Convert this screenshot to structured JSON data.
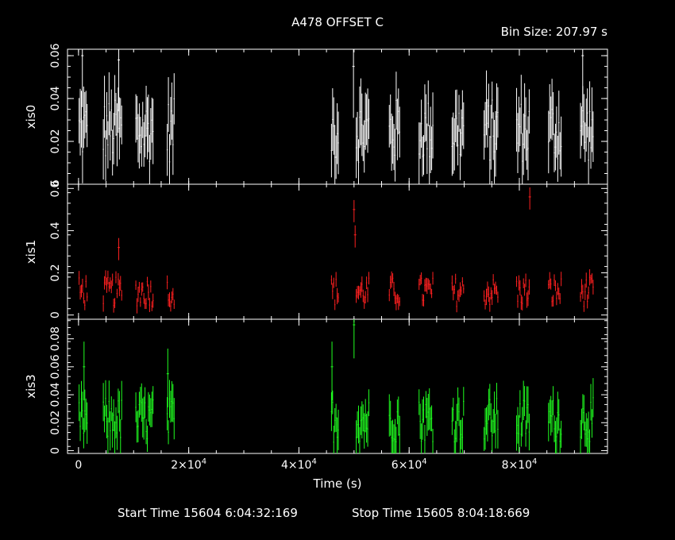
{
  "title": "A478 OFFSET C",
  "bin_size": "Bin Size: 207.97 s",
  "footer": {
    "start": "Start Time 15604  6:04:32:169",
    "stop": "Stop Time 15605  8:04:18:669"
  },
  "colors": {
    "xis0": "#ffffff",
    "xis1": "#ff2020",
    "xis3": "#20ff20",
    "axes": "#ffffff",
    "background": "#000000"
  },
  "chart_data": {
    "type": "scatter",
    "xlabel": "Time (s)",
    "xlim": [
      -2000,
      96000
    ],
    "x_ticks": [
      {
        "value": 0,
        "base": "0",
        "exp": ""
      },
      {
        "value": 20000,
        "base": "2×10",
        "exp": "4"
      },
      {
        "value": 40000,
        "base": "4×10",
        "exp": "4"
      },
      {
        "value": 60000,
        "base": "6×10",
        "exp": "4"
      },
      {
        "value": 80000,
        "base": "8×10",
        "exp": "4"
      }
    ],
    "gti_intervals": [
      [
        0,
        1600
      ],
      [
        4400,
        7800
      ],
      [
        10300,
        13500
      ],
      [
        16000,
        17400
      ],
      [
        45800,
        47200
      ],
      [
        50300,
        52700
      ],
      [
        56300,
        58300
      ],
      [
        61700,
        64200
      ],
      [
        67700,
        69900
      ],
      [
        73500,
        76100
      ],
      [
        79400,
        81700
      ],
      [
        85200,
        87600
      ],
      [
        91000,
        93300
      ]
    ],
    "panels": [
      {
        "name": "xis0",
        "ylim": [
          0,
          0.063
        ],
        "yticks": [
          0,
          0.02,
          0.04,
          0.06
        ],
        "ytick_labels": [
          "0",
          "0.02",
          "0.04",
          "0.06"
        ],
        "base": 0.025,
        "spread": 0.03,
        "err": 0.012,
        "spikes": [
          [
            49900,
            0.055
          ],
          [
            91500,
            0.06
          ],
          [
            700,
            0.06
          ],
          [
            7300,
            0.058
          ]
        ]
      },
      {
        "name": "xis1",
        "ylim": [
          -0.02,
          0.62
        ],
        "yticks": [
          0,
          0.2,
          0.4,
          0.6
        ],
        "ytick_labels": [
          "0",
          "0.2",
          "0.4",
          "0.6"
        ],
        "base": 0.11,
        "spread": 0.14,
        "err": 0.03,
        "spikes": [
          [
            50000,
            0.5
          ],
          [
            50200,
            0.38
          ],
          [
            81900,
            0.56
          ],
          [
            7300,
            0.32
          ]
        ]
      },
      {
        "name": "xis3",
        "ylim": [
          -0.002,
          0.094
        ],
        "yticks": [
          0,
          0.02,
          0.04,
          0.06,
          0.08
        ],
        "ytick_labels": [
          "0",
          "0.02",
          "0.04",
          "0.06",
          "0.08"
        ],
        "base": 0.022,
        "spread": 0.032,
        "err": 0.012,
        "spikes": [
          [
            50000,
            0.09
          ],
          [
            46000,
            0.06
          ],
          [
            1000,
            0.06
          ],
          [
            16200,
            0.055
          ]
        ]
      }
    ]
  }
}
